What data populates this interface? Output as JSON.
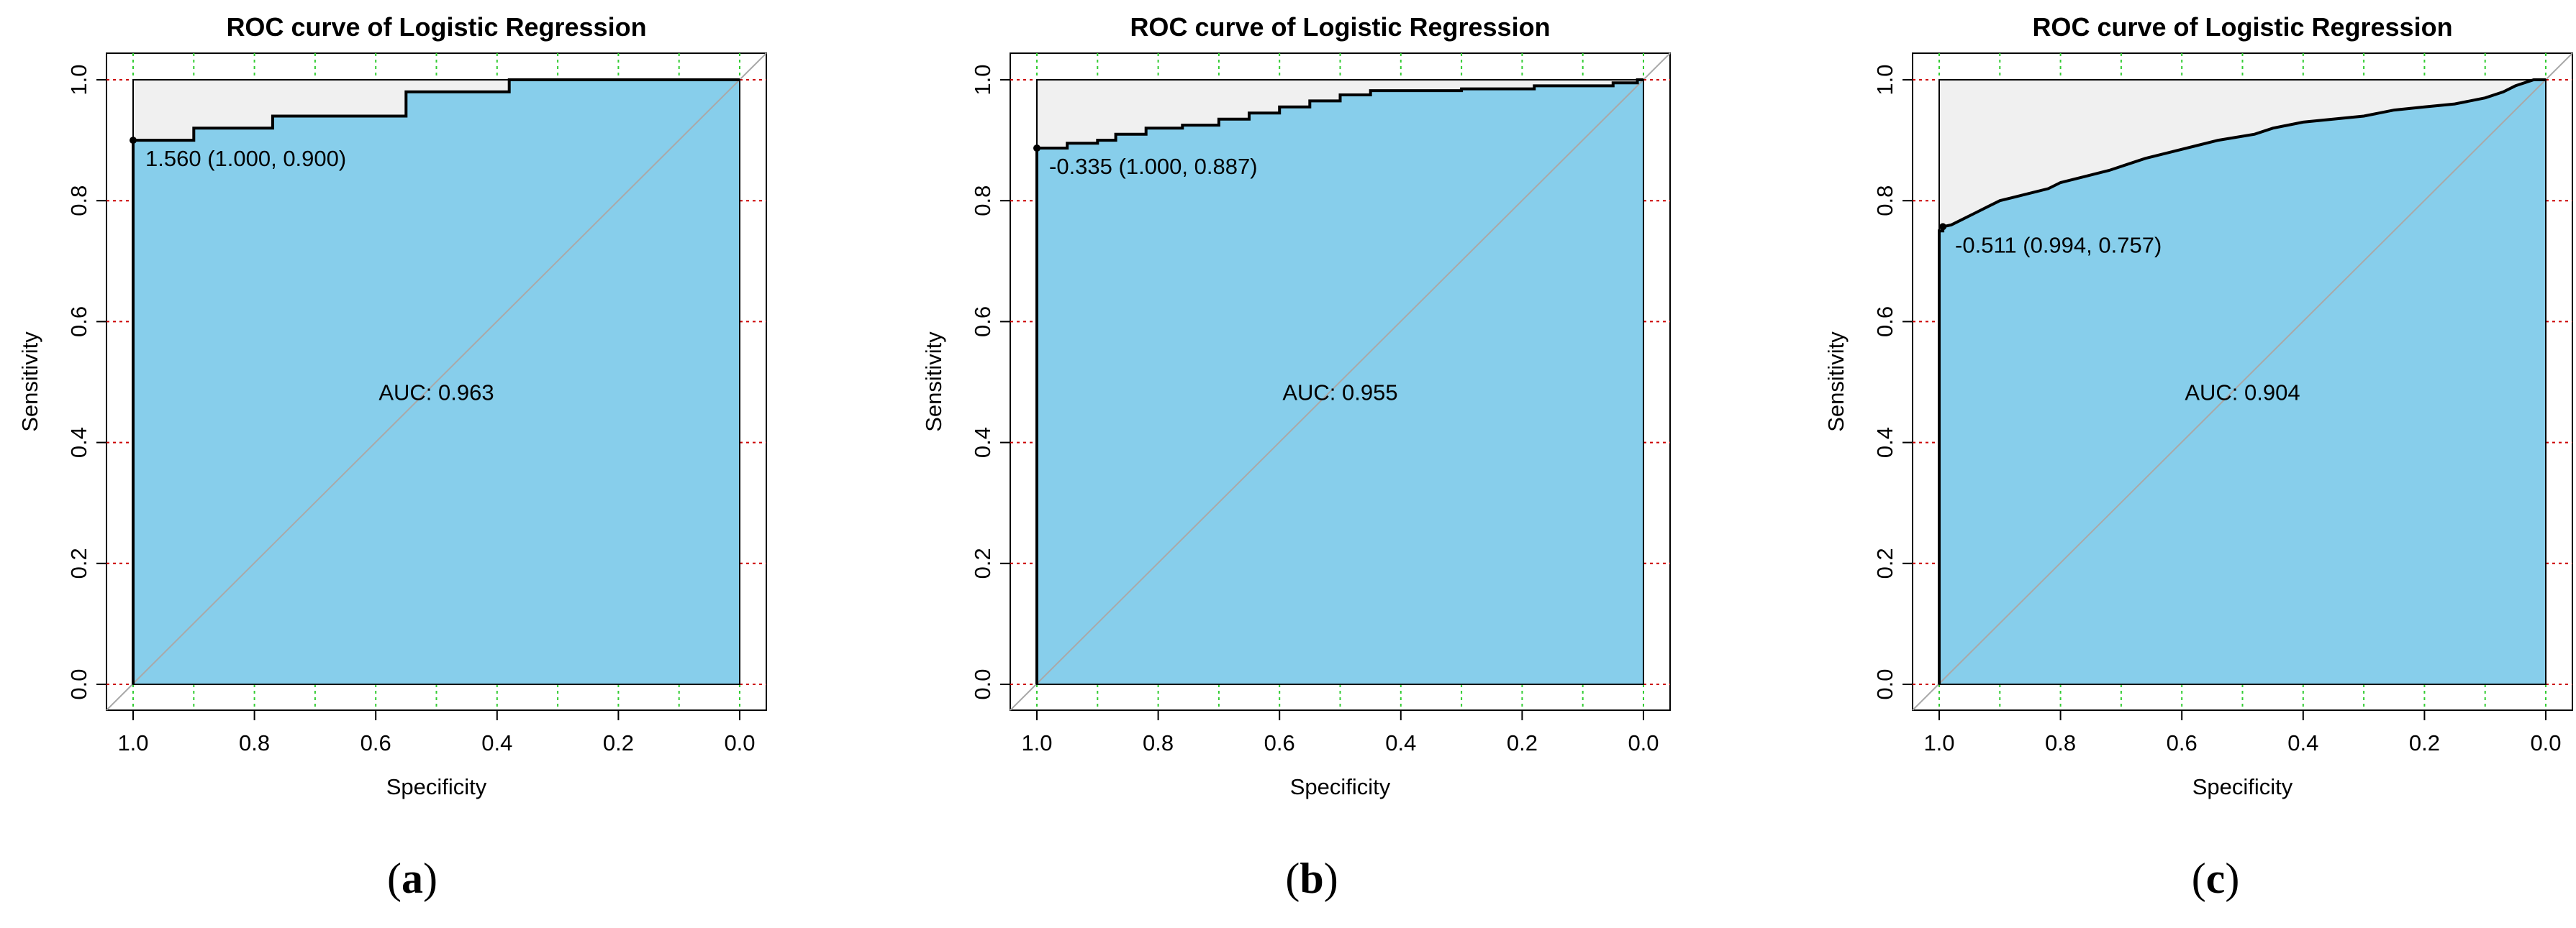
{
  "colors": {
    "area": "#87CEEB",
    "upper": "#F0F0F0",
    "curve": "#000000",
    "diagonal": "#A9A9A9",
    "grid_h": "#CC0000",
    "grid_v": "#33CC33"
  },
  "chart_data": [
    {
      "type": "line",
      "panel_label": "a",
      "title": "ROC curve of Logistic Regression",
      "xlabel": "Specificity",
      "ylabel": "Sensitivity",
      "xlim": [
        1.0,
        0.0
      ],
      "ylim": [
        0.0,
        1.0
      ],
      "xticks": [
        "1.0",
        "0.8",
        "0.6",
        "0.4",
        "0.2",
        "0.0"
      ],
      "yticks": [
        "0.0",
        "0.2",
        "0.4",
        "0.6",
        "0.8",
        "1.0"
      ],
      "grid": true,
      "auc_label": "AUC: 0.963",
      "auc_pos": [
        0.5,
        0.47
      ],
      "threshold_label": "1.560 (1.000, 0.900)",
      "threshold_point": [
        1.0,
        0.9
      ],
      "roc": [
        [
          1.0,
          0.0
        ],
        [
          1.0,
          0.9
        ],
        [
          0.9,
          0.9
        ],
        [
          0.9,
          0.92
        ],
        [
          0.77,
          0.92
        ],
        [
          0.77,
          0.94
        ],
        [
          0.55,
          0.94
        ],
        [
          0.55,
          0.98
        ],
        [
          0.38,
          0.98
        ],
        [
          0.38,
          1.0
        ],
        [
          0.0,
          1.0
        ]
      ]
    },
    {
      "type": "line",
      "panel_label": "b",
      "title": "ROC curve of Logistic Regression",
      "xlabel": "Specificity",
      "ylabel": "Sensitivity",
      "xlim": [
        1.0,
        0.0
      ],
      "ylim": [
        0.0,
        1.0
      ],
      "xticks": [
        "1.0",
        "0.8",
        "0.6",
        "0.4",
        "0.2",
        "0.0"
      ],
      "yticks": [
        "0.0",
        "0.2",
        "0.4",
        "0.6",
        "0.8",
        "1.0"
      ],
      "grid": true,
      "auc_label": "AUC: 0.955",
      "auc_pos": [
        0.5,
        0.47
      ],
      "threshold_label": "-0.335 (1.000, 0.887)",
      "threshold_point": [
        1.0,
        0.887
      ],
      "roc": [
        [
          1.0,
          0.0
        ],
        [
          1.0,
          0.887
        ],
        [
          0.95,
          0.887
        ],
        [
          0.95,
          0.895
        ],
        [
          0.9,
          0.895
        ],
        [
          0.9,
          0.9
        ],
        [
          0.87,
          0.9
        ],
        [
          0.87,
          0.91
        ],
        [
          0.82,
          0.91
        ],
        [
          0.82,
          0.92
        ],
        [
          0.76,
          0.92
        ],
        [
          0.76,
          0.925
        ],
        [
          0.7,
          0.925
        ],
        [
          0.7,
          0.935
        ],
        [
          0.65,
          0.935
        ],
        [
          0.65,
          0.945
        ],
        [
          0.6,
          0.945
        ],
        [
          0.6,
          0.955
        ],
        [
          0.55,
          0.955
        ],
        [
          0.55,
          0.965
        ],
        [
          0.5,
          0.965
        ],
        [
          0.5,
          0.975
        ],
        [
          0.45,
          0.975
        ],
        [
          0.45,
          0.982
        ],
        [
          0.3,
          0.982
        ],
        [
          0.3,
          0.985
        ],
        [
          0.18,
          0.985
        ],
        [
          0.18,
          0.99
        ],
        [
          0.05,
          0.99
        ],
        [
          0.05,
          0.995
        ],
        [
          0.01,
          0.995
        ],
        [
          0.01,
          1.0
        ],
        [
          0.0,
          1.0
        ]
      ]
    },
    {
      "type": "line",
      "panel_label": "c",
      "title": "ROC curve of Logistic Regression",
      "xlabel": "Specificity",
      "ylabel": "Sensitivity",
      "xlim": [
        1.0,
        0.0
      ],
      "ylim": [
        0.0,
        1.0
      ],
      "xticks": [
        "1.0",
        "0.8",
        "0.6",
        "0.4",
        "0.2",
        "0.0"
      ],
      "yticks": [
        "0.0",
        "0.2",
        "0.4",
        "0.6",
        "0.8",
        "1.0"
      ],
      "grid": true,
      "auc_label": "AUC: 0.904",
      "auc_pos": [
        0.5,
        0.47
      ],
      "threshold_label": "-0.511 (0.994, 0.757)",
      "threshold_point": [
        0.994,
        0.757
      ],
      "roc": [
        [
          1.0,
          0.0
        ],
        [
          1.0,
          0.75
        ],
        [
          0.994,
          0.75
        ],
        [
          0.994,
          0.757
        ],
        [
          0.98,
          0.76
        ],
        [
          0.96,
          0.77
        ],
        [
          0.94,
          0.78
        ],
        [
          0.92,
          0.79
        ],
        [
          0.9,
          0.8
        ],
        [
          0.86,
          0.81
        ],
        [
          0.82,
          0.82
        ],
        [
          0.8,
          0.83
        ],
        [
          0.76,
          0.84
        ],
        [
          0.72,
          0.85
        ],
        [
          0.69,
          0.86
        ],
        [
          0.66,
          0.87
        ],
        [
          0.62,
          0.88
        ],
        [
          0.58,
          0.89
        ],
        [
          0.54,
          0.9
        ],
        [
          0.48,
          0.91
        ],
        [
          0.45,
          0.92
        ],
        [
          0.4,
          0.93
        ],
        [
          0.3,
          0.94
        ],
        [
          0.25,
          0.95
        ],
        [
          0.2,
          0.955
        ],
        [
          0.15,
          0.96
        ],
        [
          0.1,
          0.97
        ],
        [
          0.07,
          0.98
        ],
        [
          0.05,
          0.99
        ],
        [
          0.02,
          1.0
        ],
        [
          0.0,
          1.0
        ]
      ]
    }
  ]
}
